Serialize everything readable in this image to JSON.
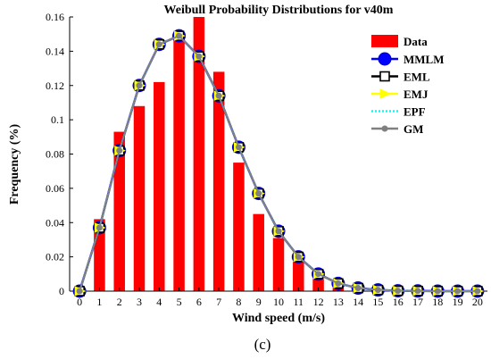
{
  "panel_label": "(c)",
  "chart_data": {
    "type": "bar+line",
    "title": "Weibull Probability Distributions for v40m",
    "xlabel": "Wind speed (m/s)",
    "ylabel": "Frequency (%)",
    "xlim": [
      -0.5,
      20.5
    ],
    "ylim": [
      0,
      0.16
    ],
    "xticks": [
      0,
      1,
      2,
      3,
      4,
      5,
      6,
      7,
      8,
      9,
      10,
      11,
      12,
      13,
      14,
      15,
      16,
      17,
      18,
      19,
      20
    ],
    "yticks": [
      0,
      0.02,
      0.04,
      0.06,
      0.08,
      0.1,
      0.12,
      0.14,
      0.16
    ],
    "ytick_labels": [
      "0",
      "0.02",
      "0.04",
      "0.06",
      "0.08",
      "0.1",
      "0.12",
      "0.14",
      "0.16"
    ],
    "legend_position": "top-right",
    "grid": false,
    "bars": {
      "name": "Data",
      "color": "#ff0000",
      "x": [
        1,
        2,
        3,
        4,
        5,
        6,
        7,
        8,
        9,
        10,
        11,
        12,
        13
      ],
      "values": [
        0.042,
        0.093,
        0.108,
        0.122,
        0.15,
        0.161,
        0.128,
        0.075,
        0.045,
        0.031,
        0.017,
        0.007,
        0.002
      ]
    },
    "x": [
      0,
      1,
      2,
      3,
      4,
      5,
      6,
      7,
      8,
      9,
      10,
      11,
      12,
      13,
      14,
      15,
      16,
      17,
      18,
      19,
      20
    ],
    "series": [
      {
        "name": "MMLM",
        "color": "#0000ff",
        "marker": "filled-circle",
        "values": [
          0,
          0.037,
          0.082,
          0.12,
          0.144,
          0.149,
          0.137,
          0.114,
          0.084,
          0.057,
          0.035,
          0.02,
          0.01,
          0.0045,
          0.0018,
          0.0007,
          0.0002,
          0.0001,
          0,
          0,
          0
        ]
      },
      {
        "name": "EML",
        "color": "#000000",
        "marker": "open-square",
        "values": [
          0,
          0.037,
          0.082,
          0.12,
          0.144,
          0.149,
          0.137,
          0.114,
          0.084,
          0.057,
          0.035,
          0.02,
          0.01,
          0.0045,
          0.0018,
          0.0007,
          0.0002,
          0.0001,
          0,
          0,
          0
        ]
      },
      {
        "name": "EMJ",
        "color": "#ffff00",
        "marker": "right-triangle",
        "values": [
          0,
          0.037,
          0.082,
          0.12,
          0.144,
          0.149,
          0.137,
          0.114,
          0.084,
          0.057,
          0.035,
          0.02,
          0.01,
          0.0045,
          0.0018,
          0.0007,
          0.0002,
          0.0001,
          0,
          0,
          0
        ]
      },
      {
        "name": "EPF",
        "color": "#00ffff",
        "marker": "none",
        "dashed": true,
        "values": [
          0,
          0.037,
          0.082,
          0.12,
          0.144,
          0.149,
          0.137,
          0.114,
          0.084,
          0.057,
          0.035,
          0.02,
          0.01,
          0.0045,
          0.0018,
          0.0007,
          0.0002,
          0.0001,
          0,
          0,
          0
        ]
      },
      {
        "name": "GM",
        "color": "#808080",
        "marker": "small-dot",
        "values": [
          0,
          0.037,
          0.082,
          0.12,
          0.144,
          0.149,
          0.137,
          0.114,
          0.084,
          0.057,
          0.035,
          0.02,
          0.01,
          0.0045,
          0.0018,
          0.0007,
          0.0002,
          0.0001,
          0,
          0,
          0
        ]
      }
    ]
  }
}
